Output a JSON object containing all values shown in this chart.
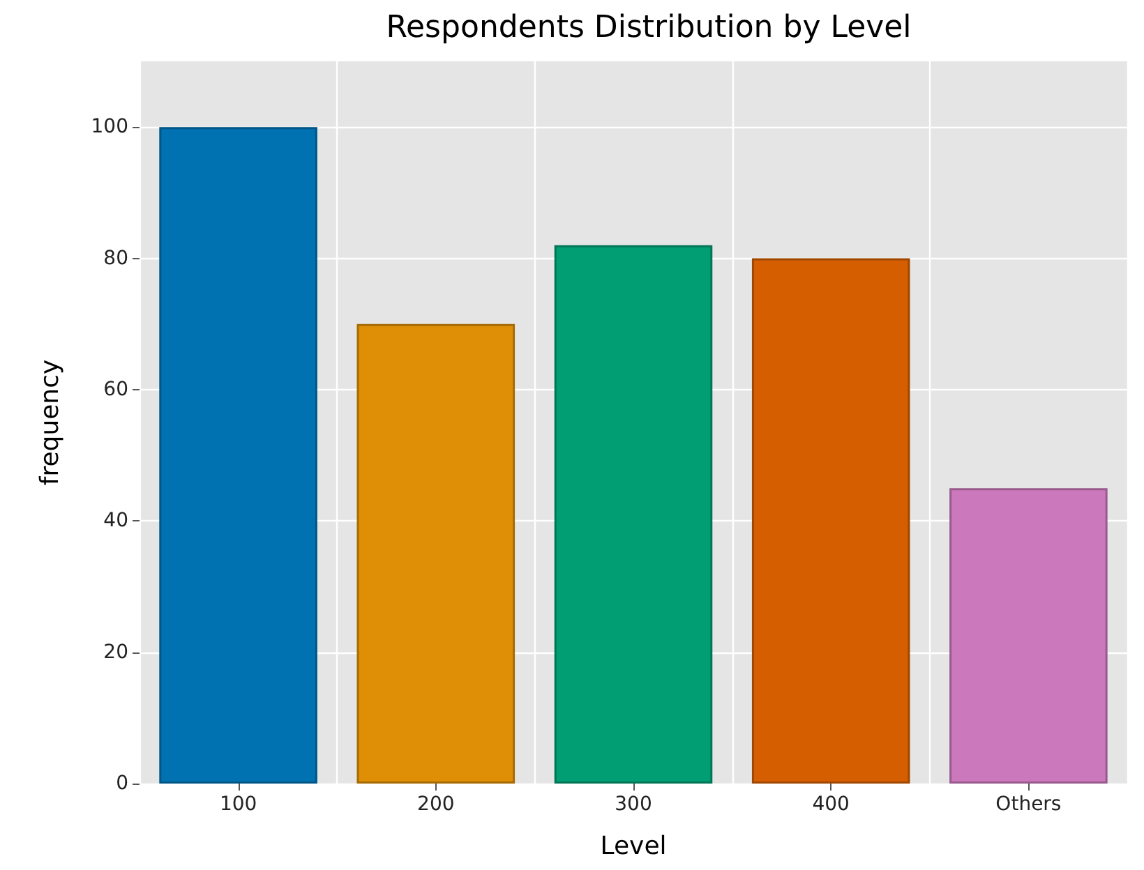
{
  "chart_data": {
    "type": "bar",
    "title": "Respondents Distribution by Level",
    "xlabel": "Level",
    "ylabel": "frequency",
    "categories": [
      "100",
      "200",
      "300",
      "400",
      "Others"
    ],
    "values": [
      100,
      70,
      82,
      80,
      45
    ],
    "colors": [
      "#0072b2",
      "#de8f05",
      "#029e73",
      "#d55e00",
      "#cc78bc"
    ],
    "ylim": [
      0,
      110
    ],
    "yticks": [
      0,
      20,
      40,
      60,
      80,
      100
    ],
    "grid": true
  }
}
